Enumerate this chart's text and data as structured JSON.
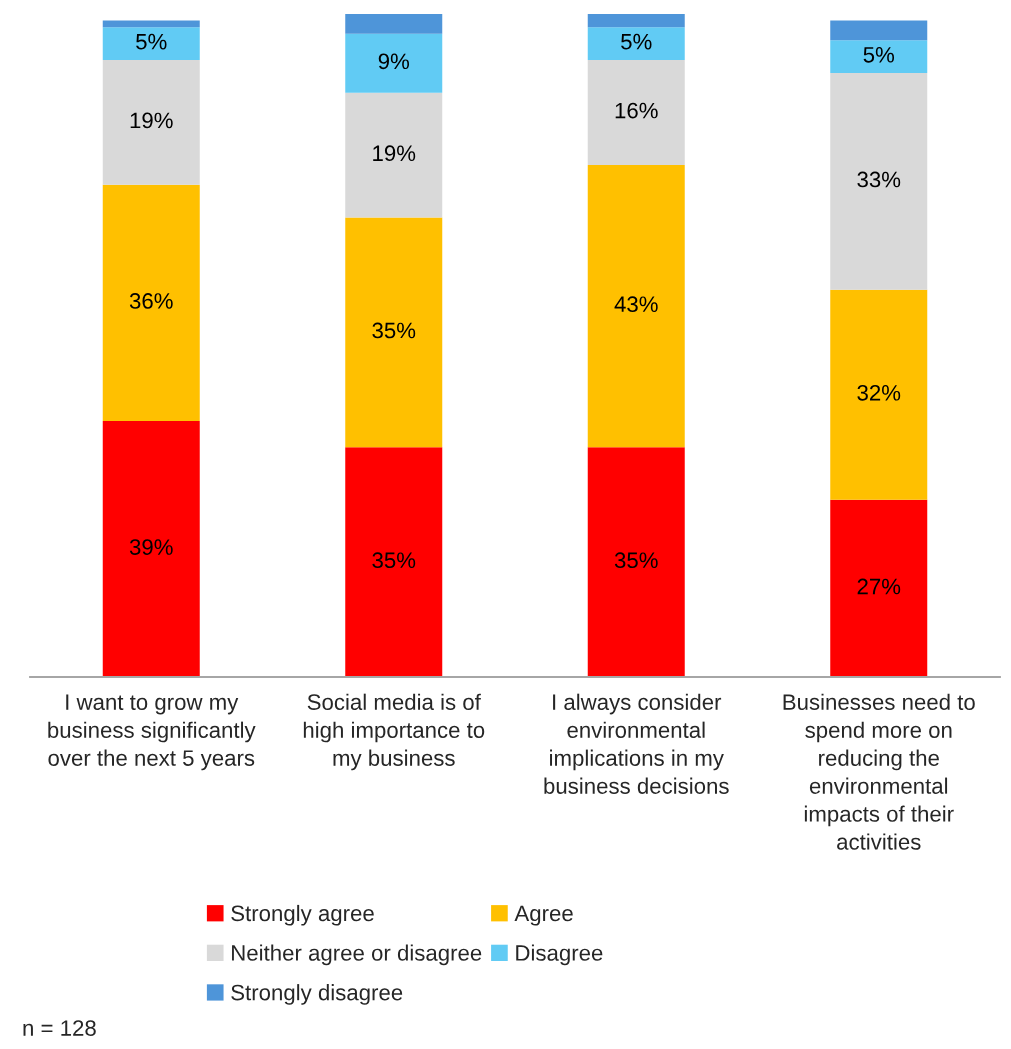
{
  "chart_data": {
    "type": "bar",
    "stacked": true,
    "categories": [
      "I want to grow my\nbusiness significantly\nover the next 5 years",
      "Social media is of\nhigh importance to\nmy business",
      "I always consider\nenvironmental\nimplications in my\nbusiness decisions",
      "Businesses need to\nspend more on\nreducing the\nenvironmental\nimpacts of their\nactivities"
    ],
    "series": [
      {
        "name": "Strongly agree",
        "color": "#ff0000",
        "values": [
          39,
          35,
          35,
          27
        ],
        "value_labels": [
          "39%",
          "35%",
          "35%",
          "27%"
        ]
      },
      {
        "name": "Agree",
        "color": "#ffc000",
        "values": [
          36,
          35,
          43,
          32
        ],
        "value_labels": [
          "36%",
          "35%",
          "43%",
          "32%"
        ]
      },
      {
        "name": "Neither agree or disagree",
        "color": "#d9d9d9",
        "values": [
          19,
          19,
          16,
          33
        ],
        "value_labels": [
          "19%",
          "19%",
          "16%",
          "33%"
        ]
      },
      {
        "name": "Disagree",
        "color": "#61cbf4",
        "values": [
          5,
          9,
          5,
          5
        ],
        "value_labels": [
          "5%",
          "9%",
          "5%",
          "5%"
        ]
      },
      {
        "name": "Strongly disagree",
        "color": "#4e95d9",
        "values": [
          1,
          3,
          2,
          3
        ],
        "value_labels": [
          null,
          null,
          null,
          null
        ]
      }
    ],
    "legend": "bottom",
    "grid": false,
    "tick_labels": "x",
    "annotations": [
      "n = 128"
    ]
  }
}
